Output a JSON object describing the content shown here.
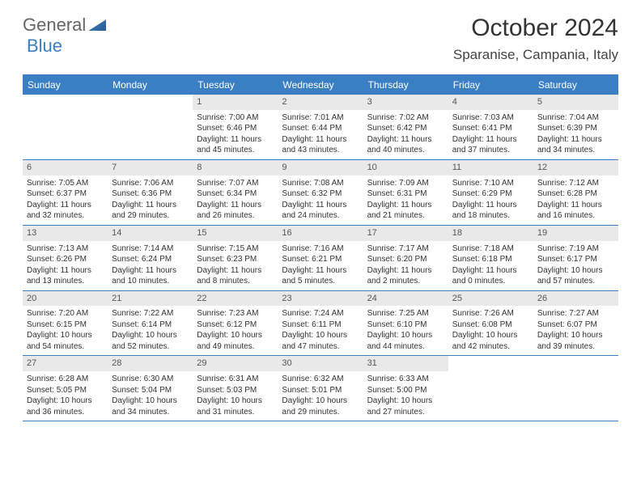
{
  "logo": {
    "text1": "General",
    "text2": "Blue"
  },
  "title": "October 2024",
  "location": "Sparanise, Campania, Italy",
  "weekdays": [
    "Sunday",
    "Monday",
    "Tuesday",
    "Wednesday",
    "Thursday",
    "Friday",
    "Saturday"
  ],
  "colors": {
    "accent": "#3a7fc4",
    "daynum_bg": "#e9e9e9",
    "text": "#333333",
    "bg": "#ffffff"
  },
  "typography": {
    "title_size": 30,
    "location_size": 17,
    "weekday_size": 12,
    "daynum_size": 11,
    "body_size": 10
  },
  "layout": {
    "cols": 7,
    "rows": 5,
    "leading_blanks": 2,
    "trailing_blanks": 2,
    "cell_min_height": 78
  },
  "days": [
    {
      "n": "1",
      "sr": "7:00 AM",
      "ss": "6:46 PM",
      "dl": "11 hours and 45 minutes."
    },
    {
      "n": "2",
      "sr": "7:01 AM",
      "ss": "6:44 PM",
      "dl": "11 hours and 43 minutes."
    },
    {
      "n": "3",
      "sr": "7:02 AM",
      "ss": "6:42 PM",
      "dl": "11 hours and 40 minutes."
    },
    {
      "n": "4",
      "sr": "7:03 AM",
      "ss": "6:41 PM",
      "dl": "11 hours and 37 minutes."
    },
    {
      "n": "5",
      "sr": "7:04 AM",
      "ss": "6:39 PM",
      "dl": "11 hours and 34 minutes."
    },
    {
      "n": "6",
      "sr": "7:05 AM",
      "ss": "6:37 PM",
      "dl": "11 hours and 32 minutes."
    },
    {
      "n": "7",
      "sr": "7:06 AM",
      "ss": "6:36 PM",
      "dl": "11 hours and 29 minutes."
    },
    {
      "n": "8",
      "sr": "7:07 AM",
      "ss": "6:34 PM",
      "dl": "11 hours and 26 minutes."
    },
    {
      "n": "9",
      "sr": "7:08 AM",
      "ss": "6:32 PM",
      "dl": "11 hours and 24 minutes."
    },
    {
      "n": "10",
      "sr": "7:09 AM",
      "ss": "6:31 PM",
      "dl": "11 hours and 21 minutes."
    },
    {
      "n": "11",
      "sr": "7:10 AM",
      "ss": "6:29 PM",
      "dl": "11 hours and 18 minutes."
    },
    {
      "n": "12",
      "sr": "7:12 AM",
      "ss": "6:28 PM",
      "dl": "11 hours and 16 minutes."
    },
    {
      "n": "13",
      "sr": "7:13 AM",
      "ss": "6:26 PM",
      "dl": "11 hours and 13 minutes."
    },
    {
      "n": "14",
      "sr": "7:14 AM",
      "ss": "6:24 PM",
      "dl": "11 hours and 10 minutes."
    },
    {
      "n": "15",
      "sr": "7:15 AM",
      "ss": "6:23 PM",
      "dl": "11 hours and 8 minutes."
    },
    {
      "n": "16",
      "sr": "7:16 AM",
      "ss": "6:21 PM",
      "dl": "11 hours and 5 minutes."
    },
    {
      "n": "17",
      "sr": "7:17 AM",
      "ss": "6:20 PM",
      "dl": "11 hours and 2 minutes."
    },
    {
      "n": "18",
      "sr": "7:18 AM",
      "ss": "6:18 PM",
      "dl": "11 hours and 0 minutes."
    },
    {
      "n": "19",
      "sr": "7:19 AM",
      "ss": "6:17 PM",
      "dl": "10 hours and 57 minutes."
    },
    {
      "n": "20",
      "sr": "7:20 AM",
      "ss": "6:15 PM",
      "dl": "10 hours and 54 minutes."
    },
    {
      "n": "21",
      "sr": "7:22 AM",
      "ss": "6:14 PM",
      "dl": "10 hours and 52 minutes."
    },
    {
      "n": "22",
      "sr": "7:23 AM",
      "ss": "6:12 PM",
      "dl": "10 hours and 49 minutes."
    },
    {
      "n": "23",
      "sr": "7:24 AM",
      "ss": "6:11 PM",
      "dl": "10 hours and 47 minutes."
    },
    {
      "n": "24",
      "sr": "7:25 AM",
      "ss": "6:10 PM",
      "dl": "10 hours and 44 minutes."
    },
    {
      "n": "25",
      "sr": "7:26 AM",
      "ss": "6:08 PM",
      "dl": "10 hours and 42 minutes."
    },
    {
      "n": "26",
      "sr": "7:27 AM",
      "ss": "6:07 PM",
      "dl": "10 hours and 39 minutes."
    },
    {
      "n": "27",
      "sr": "6:28 AM",
      "ss": "5:05 PM",
      "dl": "10 hours and 36 minutes."
    },
    {
      "n": "28",
      "sr": "6:30 AM",
      "ss": "5:04 PM",
      "dl": "10 hours and 34 minutes."
    },
    {
      "n": "29",
      "sr": "6:31 AM",
      "ss": "5:03 PM",
      "dl": "10 hours and 31 minutes."
    },
    {
      "n": "30",
      "sr": "6:32 AM",
      "ss": "5:01 PM",
      "dl": "10 hours and 29 minutes."
    },
    {
      "n": "31",
      "sr": "6:33 AM",
      "ss": "5:00 PM",
      "dl": "10 hours and 27 minutes."
    }
  ],
  "labels": {
    "sunrise": "Sunrise: ",
    "sunset": "Sunset: ",
    "daylight": "Daylight: "
  }
}
